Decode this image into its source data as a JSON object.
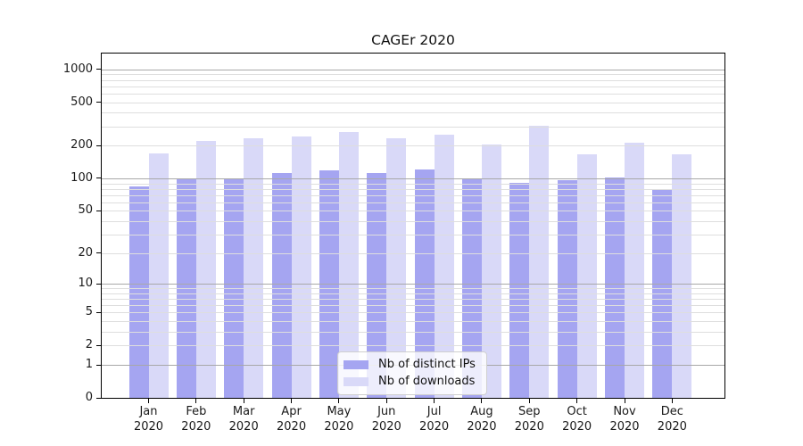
{
  "chart_data": {
    "type": "bar",
    "title": "CAGEr 2020",
    "categories": [
      "Jan 2020",
      "Feb 2020",
      "Mar 2020",
      "Apr 2020",
      "May 2020",
      "Jun 2020",
      "Jul 2020",
      "Aug 2020",
      "Sep 2020",
      "Oct 2020",
      "Nov 2020",
      "Dec 2020"
    ],
    "series": [
      {
        "name": "Nb of distinct IPs",
        "color": "#a5a5f1",
        "values": [
          85,
          98,
          100,
          113,
          118,
          112,
          120,
          98,
          91,
          97,
          101,
          80
        ]
      },
      {
        "name": "Nb of downloads",
        "color": "#d9d9f8",
        "values": [
          170,
          220,
          232,
          245,
          266,
          235,
          252,
          206,
          306,
          168,
          214,
          167
        ]
      }
    ],
    "xlabel": "",
    "ylabel": "",
    "yscale": "log1p",
    "yticks": [
      0,
      1,
      2,
      5,
      10,
      20,
      50,
      100,
      200,
      500,
      1000
    ],
    "ytick_labels": [
      "0",
      "1",
      "2",
      "5",
      "10",
      "20",
      "50",
      "100",
      "200",
      "500",
      "1000"
    ],
    "ylim": [
      0,
      1400
    ],
    "grid": true,
    "legend_position": "lower center"
  }
}
